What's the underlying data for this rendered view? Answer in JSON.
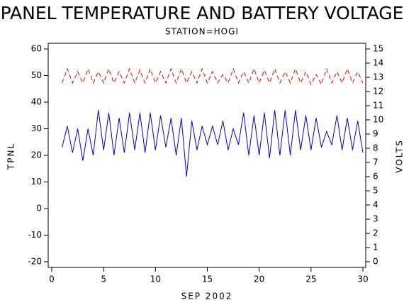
{
  "chart_data": {
    "type": "line",
    "title": "PANEL TEMPERATURE AND BATTERY VOLTAGE",
    "subtitle": "STATION=HOGI",
    "xlabel": "SEP 2002",
    "ylabel": "TPNL",
    "y2label": "VOLTS",
    "x": [
      1,
      1.5,
      2,
      2.5,
      3,
      3.5,
      4,
      4.5,
      5,
      5.5,
      6,
      6.5,
      7,
      7.5,
      8,
      8.5,
      9,
      9.5,
      10,
      10.5,
      11,
      11.5,
      12,
      12.5,
      13,
      13.5,
      14,
      14.5,
      15,
      15.5,
      16,
      16.5,
      17,
      17.5,
      18,
      18.5,
      19,
      19.5,
      20,
      20.5,
      21,
      21.5,
      22,
      22.5,
      23,
      23.5,
      24,
      24.5,
      25,
      25.5,
      26,
      26.5,
      27,
      27.5,
      28,
      28.5,
      29,
      29.5,
      30
    ],
    "series": [
      {
        "name": "TPNL",
        "color": "#0000cc",
        "axis": "y",
        "dashed": false,
        "values": [
          23,
          31,
          21,
          30,
          18,
          30,
          20,
          37,
          22,
          36,
          20,
          34,
          21,
          36,
          22,
          36,
          21,
          36,
          22,
          35,
          23,
          34,
          20,
          34,
          12,
          33,
          22,
          31,
          24,
          31,
          24,
          33,
          22,
          30,
          24,
          36,
          20,
          35,
          20,
          36,
          19,
          37,
          20,
          37,
          20,
          37,
          22,
          35,
          22,
          34,
          23,
          29,
          24,
          35,
          22,
          34,
          22,
          33,
          21
        ]
      },
      {
        "name": "VOLTS",
        "color": "#dd0000",
        "axis": "y2",
        "dashed": true,
        "values": [
          12.6,
          13.6,
          12.6,
          13.4,
          12.6,
          13.6,
          12.6,
          13.4,
          12.6,
          13.6,
          12.6,
          13.4,
          12.6,
          13.6,
          12.6,
          13.5,
          12.6,
          13.6,
          12.6,
          13.4,
          12.6,
          13.6,
          12.6,
          13.6,
          12.6,
          13.4,
          12.6,
          13.6,
          12.6,
          13.4,
          12.6,
          13.2,
          12.6,
          13.6,
          12.6,
          13.4,
          12.6,
          13.6,
          12.6,
          13.5,
          12.6,
          13.6,
          12.6,
          13.4,
          12.6,
          13.6,
          12.6,
          13.4,
          12.5,
          13.2,
          12.5,
          13.6,
          12.6,
          13.4,
          12.6,
          13.6,
          12.6,
          13.4,
          12.6
        ]
      }
    ],
    "xlim": [
      0,
      30
    ],
    "xticks": [
      0,
      5,
      10,
      15,
      20,
      25,
      30
    ],
    "ylim": [
      -20,
      60
    ],
    "yticks": [
      -20,
      -10,
      0,
      10,
      20,
      30,
      40,
      50,
      60
    ],
    "y2lim": [
      0,
      15
    ],
    "y2ticks": [
      0,
      1,
      2,
      3,
      4,
      5,
      6,
      7,
      8,
      9,
      10,
      11,
      12,
      13,
      14,
      15
    ]
  }
}
